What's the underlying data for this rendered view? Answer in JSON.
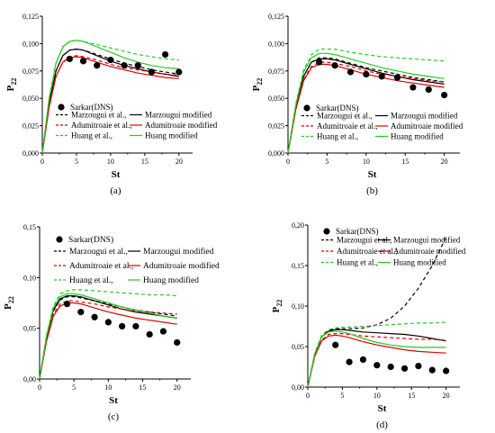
{
  "chart_data": [
    {
      "type": "line",
      "panel_label": "(a)",
      "xlabel": "St",
      "ylabel": "P",
      "ylabel_sub": "22",
      "xlim": [
        0,
        22
      ],
      "ylim": [
        0,
        0.125
      ],
      "xticks": [
        "0",
        "5",
        "10",
        "15",
        "20"
      ],
      "xtick_values": [
        0,
        5,
        10,
        15,
        20
      ],
      "yticks": [
        "0,000",
        "0,025",
        "0,050",
        "0,075",
        "0,100",
        "0,125"
      ],
      "ytick_values": [
        0,
        0.025,
        0.05,
        0.075,
        0.1,
        0.125
      ],
      "legend_position": "bottom-left",
      "markers": {
        "name": "Sarkar(DNS)",
        "color": "#000000",
        "x": [
          4,
          6,
          8,
          10,
          12,
          14,
          16,
          18,
          20
        ],
        "y": [
          0.086,
          0.084,
          0.08,
          0.085,
          0.08,
          0.08,
          0.074,
          0.09,
          0.074
        ]
      },
      "series": [
        {
          "name": "Marzougui et al.,",
          "color": "#000000",
          "dash": true,
          "x": [
            0,
            1,
            2,
            3,
            4,
            5,
            6,
            8,
            10,
            12,
            14,
            16,
            18,
            20
          ],
          "y": [
            0,
            0.045,
            0.075,
            0.089,
            0.094,
            0.095,
            0.094,
            0.09,
            0.086,
            0.082,
            0.079,
            0.076,
            0.074,
            0.072
          ]
        },
        {
          "name": "Marzougui modified",
          "color": "#000000",
          "dash": false,
          "x": [
            0,
            1,
            2,
            3,
            4,
            5,
            6,
            8,
            10,
            12,
            14,
            16,
            18,
            20
          ],
          "y": [
            0,
            0.045,
            0.075,
            0.089,
            0.094,
            0.095,
            0.094,
            0.089,
            0.084,
            0.08,
            0.077,
            0.074,
            0.072,
            0.07
          ]
        },
        {
          "name": "Adumitroaie et al.,",
          "color": "#e00000",
          "dash": true,
          "x": [
            0,
            1,
            2,
            3,
            4,
            5,
            6,
            8,
            10,
            12,
            14,
            16,
            18,
            20
          ],
          "y": [
            0,
            0.042,
            0.07,
            0.083,
            0.088,
            0.089,
            0.088,
            0.085,
            0.081,
            0.078,
            0.076,
            0.074,
            0.072,
            0.071
          ]
        },
        {
          "name": "Adumitroaie modified",
          "color": "#e00000",
          "dash": false,
          "x": [
            0,
            1,
            2,
            3,
            4,
            5,
            6,
            8,
            10,
            12,
            14,
            16,
            18,
            20
          ],
          "y": [
            0,
            0.042,
            0.07,
            0.083,
            0.087,
            0.088,
            0.087,
            0.083,
            0.079,
            0.076,
            0.073,
            0.071,
            0.069,
            0.068
          ]
        },
        {
          "name": "Huang et al.,",
          "color": "#22cc22",
          "dash": true,
          "x": [
            0,
            1,
            2,
            3,
            4,
            5,
            6,
            8,
            10,
            12,
            14,
            16,
            18,
            20
          ],
          "y": [
            0,
            0.05,
            0.082,
            0.097,
            0.102,
            0.103,
            0.102,
            0.099,
            0.096,
            0.093,
            0.09,
            0.088,
            0.086,
            0.085
          ]
        },
        {
          "name": "Huang modified",
          "color": "#22cc22",
          "dash": false,
          "x": [
            0,
            1,
            2,
            3,
            4,
            5,
            6,
            8,
            10,
            12,
            14,
            16,
            18,
            20
          ],
          "y": [
            0,
            0.05,
            0.082,
            0.097,
            0.102,
            0.103,
            0.102,
            0.097,
            0.092,
            0.087,
            0.083,
            0.08,
            0.078,
            0.077
          ]
        }
      ]
    },
    {
      "type": "line",
      "panel_label": "(b)",
      "xlabel": "St",
      "ylabel": "P",
      "ylabel_sub": "22",
      "xlim": [
        0,
        22
      ],
      "ylim": [
        0,
        0.125
      ],
      "xticks": [
        "0",
        "5",
        "10",
        "15",
        "20"
      ],
      "xtick_values": [
        0,
        5,
        10,
        15,
        20
      ],
      "yticks": [
        "0,000",
        "0,025",
        "0,050",
        "0,075",
        "0,100",
        "0,125"
      ],
      "ytick_values": [
        0,
        0.025,
        0.05,
        0.075,
        0.1,
        0.125
      ],
      "legend_position": "bottom-left",
      "markers": {
        "name": "Sarkar(DNS)",
        "color": "#000000",
        "x": [
          4,
          6,
          8,
          10,
          12,
          14,
          16,
          18,
          20
        ],
        "y": [
          0.083,
          0.08,
          0.074,
          0.072,
          0.07,
          0.069,
          0.06,
          0.058,
          0.053
        ]
      },
      "series": [
        {
          "name": "Marzougui et al.,",
          "color": "#000000",
          "dash": true,
          "x": [
            0,
            1,
            2,
            3,
            4,
            5,
            6,
            8,
            10,
            12,
            14,
            16,
            18,
            20
          ],
          "y": [
            0,
            0.042,
            0.07,
            0.083,
            0.087,
            0.087,
            0.086,
            0.082,
            0.078,
            0.075,
            0.072,
            0.069,
            0.067,
            0.065
          ]
        },
        {
          "name": "Marzougui modified",
          "color": "#000000",
          "dash": false,
          "x": [
            0,
            1,
            2,
            3,
            4,
            5,
            6,
            8,
            10,
            12,
            14,
            16,
            18,
            20
          ],
          "y": [
            0,
            0.042,
            0.07,
            0.083,
            0.086,
            0.086,
            0.085,
            0.081,
            0.077,
            0.073,
            0.07,
            0.067,
            0.065,
            0.063
          ]
        },
        {
          "name": "Adumitroaie et al.,",
          "color": "#e00000",
          "dash": true,
          "x": [
            0,
            1,
            2,
            3,
            4,
            5,
            6,
            8,
            10,
            12,
            14,
            16,
            18,
            20
          ],
          "y": [
            0,
            0.04,
            0.067,
            0.079,
            0.083,
            0.083,
            0.082,
            0.079,
            0.075,
            0.072,
            0.07,
            0.068,
            0.066,
            0.065
          ]
        },
        {
          "name": "Adumitroaie modified",
          "color": "#e00000",
          "dash": false,
          "x": [
            0,
            1,
            2,
            3,
            4,
            5,
            6,
            8,
            10,
            12,
            14,
            16,
            18,
            20
          ],
          "y": [
            0,
            0.04,
            0.066,
            0.078,
            0.081,
            0.081,
            0.08,
            0.076,
            0.072,
            0.069,
            0.066,
            0.064,
            0.062,
            0.06
          ]
        },
        {
          "name": "Huang et al.,",
          "color": "#22cc22",
          "dash": true,
          "x": [
            0,
            1,
            2,
            3,
            4,
            5,
            6,
            8,
            10,
            12,
            14,
            16,
            18,
            20
          ],
          "y": [
            0,
            0.045,
            0.076,
            0.09,
            0.095,
            0.095,
            0.095,
            0.092,
            0.09,
            0.088,
            0.087,
            0.086,
            0.085,
            0.084
          ]
        },
        {
          "name": "Huang modified",
          "color": "#22cc22",
          "dash": false,
          "x": [
            0,
            1,
            2,
            3,
            4,
            5,
            6,
            8,
            10,
            12,
            14,
            16,
            18,
            20
          ],
          "y": [
            0,
            0.044,
            0.074,
            0.087,
            0.091,
            0.091,
            0.09,
            0.086,
            0.082,
            0.078,
            0.075,
            0.072,
            0.07,
            0.068
          ]
        }
      ]
    },
    {
      "type": "line",
      "panel_label": "(c)",
      "xlabel": "St",
      "ylabel": "P",
      "ylabel_sub": "22",
      "xlim": [
        0,
        22
      ],
      "ylim": [
        0,
        0.15
      ],
      "xticks": [
        "0",
        "5",
        "10",
        "15",
        "20"
      ],
      "xtick_values": [
        0,
        5,
        10,
        15,
        20
      ],
      "yticks": [
        "0,00",
        "0,05",
        "0,10",
        "0,15"
      ],
      "ytick_values": [
        0,
        0.05,
        0.1,
        0.15
      ],
      "legend_position": "top-left",
      "markers": {
        "name": "Sarkar(DNS)",
        "color": "#000000",
        "x": [
          4,
          6,
          8,
          10,
          12,
          14,
          16,
          18,
          20
        ],
        "y": [
          0.074,
          0.066,
          0.061,
          0.056,
          0.052,
          0.052,
          0.044,
          0.047,
          0.036
        ]
      },
      "series": [
        {
          "name": "Marzougui et al.,",
          "color": "#000000",
          "dash": true,
          "x": [
            0,
            1,
            2,
            3,
            4,
            5,
            6,
            8,
            10,
            12,
            14,
            16,
            18,
            20
          ],
          "y": [
            0,
            0.04,
            0.067,
            0.078,
            0.081,
            0.081,
            0.08,
            0.077,
            0.074,
            0.071,
            0.068,
            0.066,
            0.064,
            0.062
          ]
        },
        {
          "name": "Marzougui modified",
          "color": "#000000",
          "dash": false,
          "x": [
            0,
            1,
            2,
            3,
            4,
            5,
            6,
            8,
            10,
            12,
            14,
            16,
            18,
            20
          ],
          "y": [
            0,
            0.04,
            0.068,
            0.079,
            0.082,
            0.082,
            0.081,
            0.077,
            0.073,
            0.069,
            0.066,
            0.064,
            0.062,
            0.06
          ]
        },
        {
          "name": "Adumitroaie et al.,",
          "color": "#e00000",
          "dash": true,
          "x": [
            0,
            1,
            2,
            3,
            4,
            5,
            6,
            8,
            10,
            12,
            14,
            16,
            18,
            20
          ],
          "y": [
            0,
            0.038,
            0.064,
            0.074,
            0.077,
            0.077,
            0.076,
            0.074,
            0.071,
            0.069,
            0.067,
            0.066,
            0.065,
            0.064
          ]
        },
        {
          "name": "Adumitroaie modified",
          "color": "#e00000",
          "dash": false,
          "x": [
            0,
            1,
            2,
            3,
            4,
            5,
            6,
            8,
            10,
            12,
            14,
            16,
            18,
            20
          ],
          "y": [
            0,
            0.037,
            0.062,
            0.072,
            0.075,
            0.075,
            0.074,
            0.07,
            0.066,
            0.063,
            0.06,
            0.058,
            0.056,
            0.054
          ]
        },
        {
          "name": "Huang et al.,",
          "color": "#22cc22",
          "dash": true,
          "x": [
            0,
            1,
            2,
            3,
            4,
            5,
            6,
            8,
            10,
            12,
            14,
            16,
            18,
            20
          ],
          "y": [
            0,
            0.043,
            0.072,
            0.084,
            0.087,
            0.088,
            0.088,
            0.087,
            0.086,
            0.085,
            0.084,
            0.083,
            0.083,
            0.082
          ]
        },
        {
          "name": "Huang modified",
          "color": "#22cc22",
          "dash": false,
          "x": [
            0,
            1,
            2,
            3,
            4,
            5,
            6,
            8,
            10,
            12,
            14,
            16,
            18,
            20
          ],
          "y": [
            0,
            0.042,
            0.07,
            0.081,
            0.084,
            0.084,
            0.083,
            0.079,
            0.075,
            0.071,
            0.068,
            0.065,
            0.062,
            0.06
          ]
        }
      ]
    },
    {
      "type": "line",
      "panel_label": "(d)",
      "xlabel": "St",
      "ylabel": "P",
      "ylabel_sub": "22",
      "xlim": [
        0,
        22
      ],
      "ylim": [
        0,
        0.2
      ],
      "xticks": [
        "0",
        "5",
        "10",
        "15",
        "20"
      ],
      "xtick_values": [
        0,
        5,
        10,
        15,
        20
      ],
      "yticks": [
        "0,00",
        "0,05",
        "0,10",
        "0,15",
        "0,20"
      ],
      "ytick_values": [
        0,
        0.05,
        0.1,
        0.15,
        0.2
      ],
      "legend_position": "top-right",
      "markers": {
        "name": "Sarkar(DNS)",
        "color": "#000000",
        "x": [
          4,
          6,
          8,
          10,
          12,
          14,
          16,
          18,
          20
        ],
        "y": [
          0.052,
          0.031,
          0.034,
          0.027,
          0.025,
          0.023,
          0.026,
          0.021,
          0.02
        ]
      },
      "series": [
        {
          "name": "Marzougui et al.,",
          "color": "#000000",
          "dash": true,
          "x": [
            0,
            1,
            2,
            3,
            4,
            5,
            6,
            8,
            10,
            12,
            14,
            16,
            18,
            20
          ],
          "y": [
            0,
            0.04,
            0.062,
            0.07,
            0.072,
            0.072,
            0.072,
            0.073,
            0.077,
            0.085,
            0.1,
            0.122,
            0.15,
            0.185
          ]
        },
        {
          "name": "Marzougui modified",
          "color": "#000000",
          "dash": false,
          "x": [
            0,
            1,
            2,
            3,
            4,
            5,
            6,
            8,
            10,
            12,
            14,
            16,
            18,
            20
          ],
          "y": [
            0,
            0.04,
            0.062,
            0.069,
            0.071,
            0.071,
            0.07,
            0.068,
            0.067,
            0.066,
            0.065,
            0.063,
            0.06,
            0.057
          ]
        },
        {
          "name": "Adumitroaie et al.,",
          "color": "#e00000",
          "dash": true,
          "x": [
            0,
            1,
            2,
            3,
            4,
            5,
            6,
            8,
            10,
            12,
            14,
            16,
            18,
            20
          ],
          "y": [
            0,
            0.038,
            0.058,
            0.065,
            0.066,
            0.066,
            0.065,
            0.063,
            0.062,
            0.061,
            0.06,
            0.059,
            0.059,
            0.058
          ]
        },
        {
          "name": "Adumitroaie modified",
          "color": "#e00000",
          "dash": false,
          "x": [
            0,
            1,
            2,
            3,
            4,
            5,
            6,
            8,
            10,
            12,
            14,
            16,
            18,
            20
          ],
          "y": [
            0,
            0.038,
            0.057,
            0.063,
            0.064,
            0.063,
            0.061,
            0.056,
            0.052,
            0.049,
            0.046,
            0.044,
            0.043,
            0.042
          ]
        },
        {
          "name": "Huang et al.,",
          "color": "#22cc22",
          "dash": true,
          "x": [
            0,
            1,
            2,
            3,
            4,
            5,
            6,
            8,
            10,
            12,
            14,
            16,
            18,
            20
          ],
          "y": [
            0,
            0.042,
            0.064,
            0.071,
            0.073,
            0.074,
            0.074,
            0.075,
            0.076,
            0.077,
            0.078,
            0.079,
            0.079,
            0.08
          ]
        },
        {
          "name": "Huang modified",
          "color": "#22cc22",
          "dash": false,
          "x": [
            0,
            1,
            2,
            3,
            4,
            5,
            6,
            8,
            10,
            12,
            14,
            16,
            18,
            20
          ],
          "y": [
            0,
            0.041,
            0.062,
            0.068,
            0.069,
            0.068,
            0.066,
            0.06,
            0.055,
            0.052,
            0.05,
            0.049,
            0.049,
            0.049
          ]
        }
      ]
    }
  ]
}
